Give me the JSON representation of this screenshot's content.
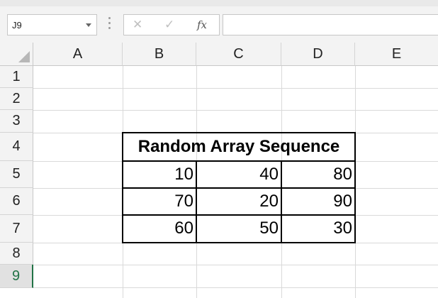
{
  "name_box": {
    "value": "J9"
  },
  "formula_bar": {
    "value": ""
  },
  "columns": [
    "A",
    "B",
    "C",
    "D",
    "E"
  ],
  "rows": [
    "1",
    "2",
    "3",
    "4",
    "5",
    "6",
    "7",
    "8",
    "9"
  ],
  "active_row": "9",
  "table": {
    "title": "Random Array Sequence",
    "values": [
      [
        "10",
        "40",
        "80"
      ],
      [
        "70",
        "20",
        "90"
      ],
      [
        "60",
        "50",
        "30"
      ]
    ]
  },
  "icons": {
    "cancel": "✕",
    "enter": "✓",
    "fx": "fx"
  }
}
